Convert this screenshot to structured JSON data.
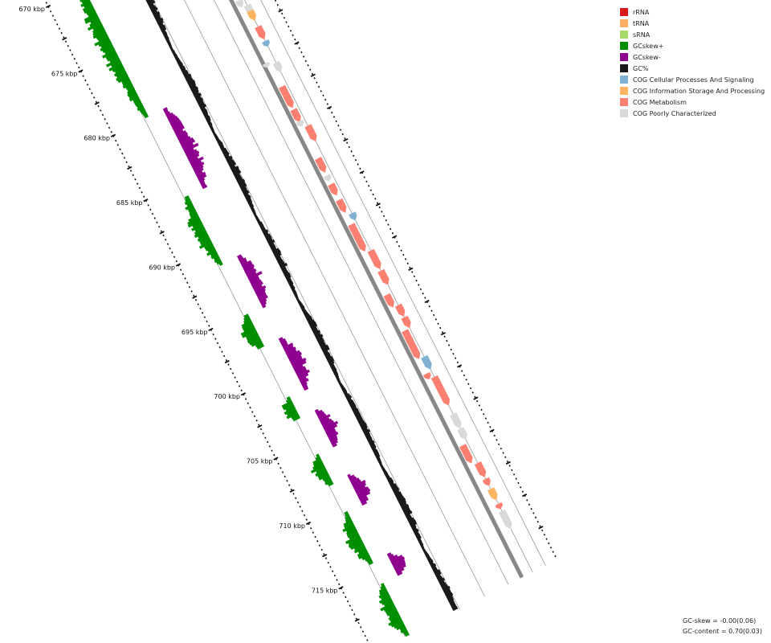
{
  "legend": {
    "items": [
      {
        "label": "rRNA",
        "color": "#d7191c"
      },
      {
        "label": "tRNA",
        "color": "#fdae61"
      },
      {
        "label": "sRNA",
        "color": "#a6d96a"
      },
      {
        "label": "GCskew+",
        "color": "#008f00"
      },
      {
        "label": "GCskew-",
        "color": "#8f008f"
      },
      {
        "label": "GC%",
        "color": "#1a1a1a"
      },
      {
        "label": "COG Cellular Processes And Signaling",
        "color": "#80b1d3"
      },
      {
        "label": "COG Information Storage And Processing",
        "color": "#fdb462"
      },
      {
        "label": "COG Metabolism",
        "color": "#fb8072"
      },
      {
        "label": "COG Poorly Characterized",
        "color": "#d9d9d9"
      }
    ]
  },
  "ruler": {
    "ticks": [
      "670 kbp",
      "675 kbp",
      "680 kbp",
      "685 kbp",
      "690 kbp",
      "695 kbp",
      "700 kbp",
      "705 kbp",
      "710 kbp",
      "715 kbp"
    ]
  },
  "stats": {
    "gc_skew": "GC-skew = -0.00(0.06)",
    "gc_content": "GC-content = 0.70(0.03)"
  }
}
